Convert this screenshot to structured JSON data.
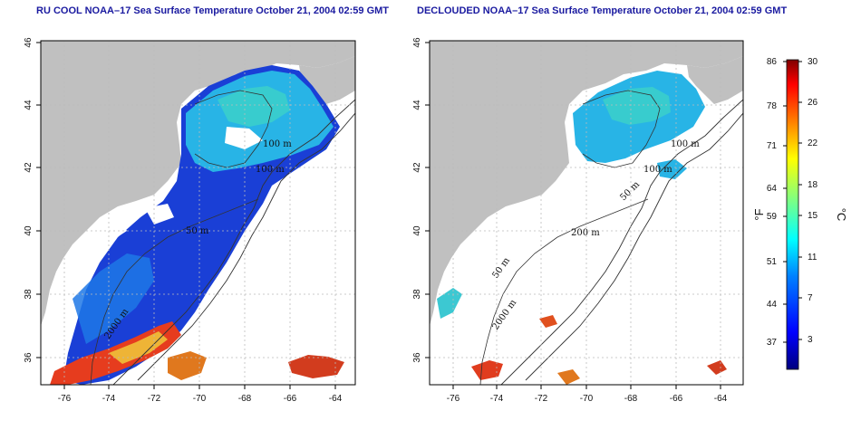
{
  "panels": [
    {
      "title": "RU COOL NOAA–17 Sea Surface Temperature October 21, 2004 02:59 GMT",
      "contour_labels": [
        "100 m",
        "100 m",
        "50 m",
        "2000 m"
      ]
    },
    {
      "title": "DECLOUDED NOAA–17 Sea Surface Temperature October 21, 2004 02:59 GMT",
      "contour_labels": [
        "100 m",
        "100 m",
        "50 m",
        "200 m",
        "50 m",
        "2000 m"
      ]
    }
  ],
  "axes": {
    "x_ticks": [
      "-76",
      "-74",
      "-72",
      "-70",
      "-68",
      "-66",
      "-64"
    ],
    "y_ticks": [
      "46",
      "44",
      "42",
      "40",
      "38",
      "36"
    ]
  },
  "colorbar": {
    "f_label": "°F",
    "c_label": "°C",
    "f_ticks": [
      "86",
      "78",
      "71",
      "64",
      "59",
      "51",
      "44",
      "37"
    ],
    "c_ticks": [
      "30",
      "26",
      "22",
      "18",
      "15",
      "11",
      "7",
      "3"
    ],
    "range_c": [
      0,
      30
    ],
    "colors": [
      "#00007f",
      "#0000ff",
      "#0080ff",
      "#00ffff",
      "#80ff80",
      "#ffff00",
      "#ff8000",
      "#ff0000",
      "#7f0000"
    ]
  },
  "colors": {
    "land": "#c0c0c0",
    "grid": "#bbbbbb",
    "contour": "#333333"
  }
}
